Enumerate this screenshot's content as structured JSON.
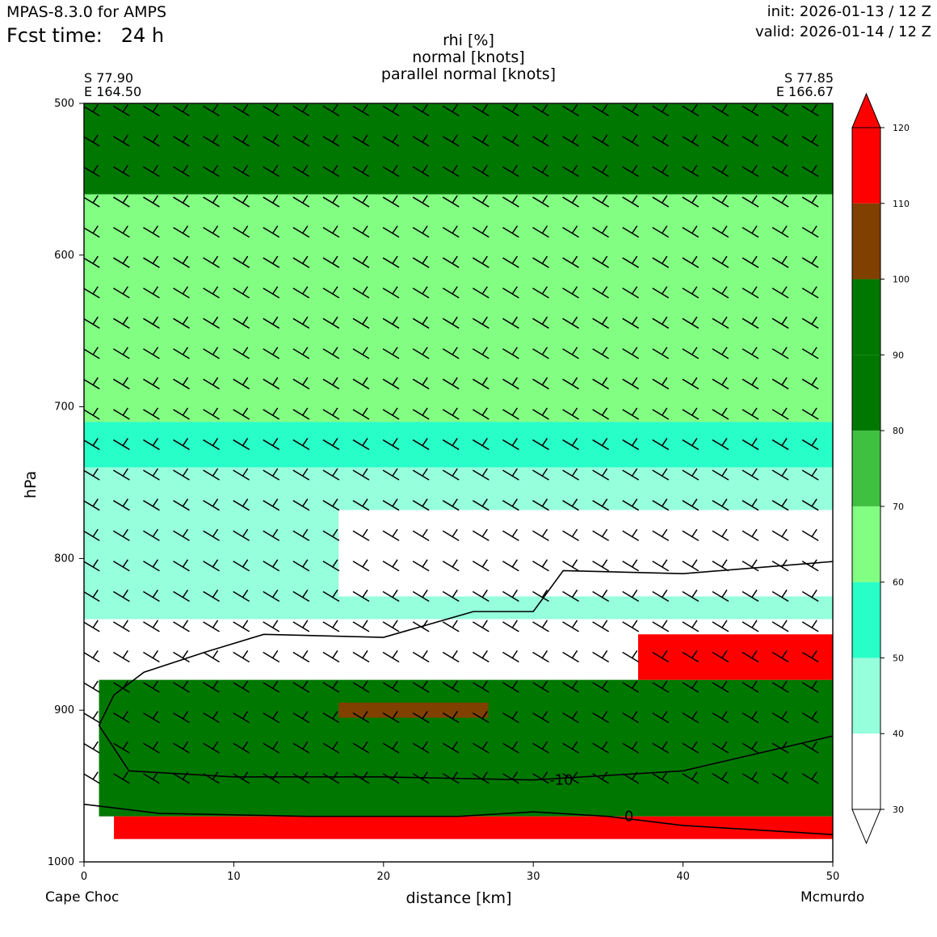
{
  "header": {
    "model": "MPAS-8.3.0 for AMPS",
    "fcst_label": "Fcst time:",
    "fcst_value": "24 h",
    "init": "init: 2026-01-13 / 12 Z",
    "valid": "valid: 2026-01-14 / 12 Z"
  },
  "endpoints": {
    "start": {
      "lat": "S 77.90",
      "lon": "E 164.50",
      "name": "Cape Choc"
    },
    "end": {
      "lat": "S 77.85",
      "lon": "E 166.67",
      "name": "Mcmurdo"
    }
  },
  "chart_data": {
    "type": "heatmap",
    "title_lines": [
      "rhi [%]",
      "normal [knots]",
      "parallel normal [knots]"
    ],
    "xlabel": "distance [km]",
    "ylabel": "hPa",
    "xlim": [
      0,
      50
    ],
    "ylim": [
      1000,
      500
    ],
    "x_ticks": [
      0,
      10,
      20,
      30,
      40,
      50
    ],
    "y_ticks": [
      500,
      600,
      700,
      800,
      900,
      1000
    ],
    "colorbar": {
      "levels": [
        30,
        40,
        50,
        60,
        70,
        80,
        90,
        100,
        110,
        120
      ],
      "colors": [
        "#ffffff",
        "#96ffdc",
        "#28ffc8",
        "#82ff82",
        "#40c040",
        "#007800",
        "#007800",
        "#804000",
        "#ff0000"
      ],
      "extend": "both"
    },
    "bands": [
      {
        "level": "rhi 80-100",
        "p_top": 500,
        "p_bottom": 560,
        "x_start": 0,
        "x_end": 50
      },
      {
        "level": "rhi 60-70",
        "p_top": 560,
        "p_bottom": 710,
        "x_start": 0,
        "x_end": 50
      },
      {
        "level": "rhi 50-60",
        "p_top": 710,
        "p_bottom": 740,
        "x_start": 0,
        "x_end": 50
      },
      {
        "level": "rhi 40-50",
        "p_top": 740,
        "p_bottom": 840,
        "x_start": 0,
        "x_end": 50
      },
      {
        "level": "rhi <40",
        "p_top": 768,
        "p_bottom": 825,
        "x_start": 17,
        "x_end": 50
      },
      {
        "level": "rhi 80-100",
        "p_top": 880,
        "p_bottom": 970,
        "x_start": 1,
        "x_end": 50
      },
      {
        "level": "rhi 100-110",
        "p_top": 895,
        "p_bottom": 905,
        "x_start": 17,
        "x_end": 27
      },
      {
        "level": "rhi >110",
        "p_top": 850,
        "p_bottom": 880,
        "x_start": 37,
        "x_end": 50
      },
      {
        "level": "rhi >110",
        "p_top": 970,
        "p_bottom": 985,
        "x_start": 2,
        "x_end": 50
      }
    ],
    "contours": [
      {
        "label": "-10",
        "points": [
          [
            1,
            910
          ],
          [
            2,
            890
          ],
          [
            4,
            875
          ],
          [
            8,
            862
          ],
          [
            12,
            850
          ],
          [
            20,
            852
          ],
          [
            26,
            835
          ],
          [
            30,
            835
          ],
          [
            32,
            808
          ],
          [
            40,
            810
          ],
          [
            50,
            802
          ]
        ],
        "points_lower": [
          [
            1,
            910
          ],
          [
            3,
            940
          ],
          [
            10,
            944
          ],
          [
            20,
            944
          ],
          [
            30,
            946
          ],
          [
            40,
            940
          ],
          [
            50,
            917
          ]
        ]
      },
      {
        "label": "0",
        "points": [
          [
            0,
            962
          ],
          [
            5,
            968
          ],
          [
            15,
            970
          ],
          [
            25,
            970
          ],
          [
            30,
            967
          ],
          [
            35,
            970
          ],
          [
            40,
            976
          ],
          [
            50,
            982
          ]
        ]
      }
    ]
  }
}
